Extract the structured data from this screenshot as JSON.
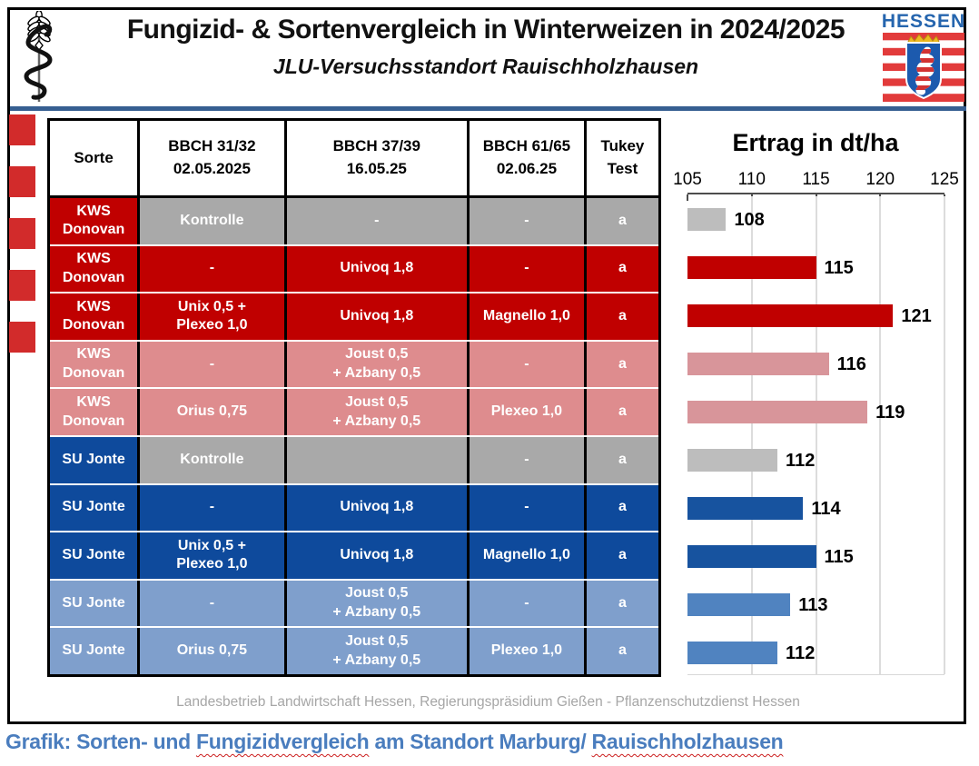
{
  "header": {
    "title": "Fungizid- & Sortenvergleich in Winterweizen in 2024/2025",
    "subtitle": "JLU-Versuchsstandort Rauischholzhausen",
    "hessen_label": "HESSEN"
  },
  "colors": {
    "darkred": "#C00000",
    "pink": "#DE8C8E",
    "gray": "#A9A9A9",
    "darkblue": "#0E4A9C",
    "lightblue": "#7F9FCC",
    "bar_gray": "#BDBDBD",
    "bar_darkred": "#C00000",
    "bar_pink": "#D8959A",
    "bar_darkblue": "#17539F",
    "bar_lightblue": "#5083C0",
    "divider_blue": "#365F91",
    "stripe_red": "#D22B2B",
    "caption_blue": "#4A7DBE"
  },
  "table": {
    "columns": [
      {
        "line1": "Sorte",
        "line2": ""
      },
      {
        "line1": "BBCH 31/32",
        "line2": "02.05.2025"
      },
      {
        "line1": "BBCH 37/39",
        "line2": "16.05.25"
      },
      {
        "line1": "BBCH 61/65",
        "line2": "02.06.25"
      },
      {
        "line1": "Tukey",
        "line2": "Test"
      }
    ],
    "rows": [
      {
        "sorte": "KWS Donovan",
        "bbch31": "Kontrolle",
        "bbch37": "-",
        "bbch61": "-",
        "tukey": "a",
        "sorte_bg": "darkred",
        "cells_bg": "gray"
      },
      {
        "sorte": "KWS Donovan",
        "bbch31": "-",
        "bbch37": "Univoq 1,8",
        "bbch61": "-",
        "tukey": "a",
        "sorte_bg": "darkred",
        "cells_bg": "darkred"
      },
      {
        "sorte": "KWS Donovan",
        "bbch31": "Unix 0,5 +\nPlexeo 1,0",
        "bbch37": "Univoq 1,8",
        "bbch61": "Magnello 1,0",
        "tukey": "a",
        "sorte_bg": "darkred",
        "cells_bg": "darkred"
      },
      {
        "sorte": "KWS Donovan",
        "bbch31": "-",
        "bbch37": "Joust 0,5\n+ Azbany 0,5",
        "bbch61": "-",
        "tukey": "a",
        "sorte_bg": "pink",
        "cells_bg": "pink"
      },
      {
        "sorte": "KWS Donovan",
        "bbch31": "Orius 0,75",
        "bbch37": "Joust 0,5\n+ Azbany 0,5",
        "bbch61": "Plexeo 1,0",
        "tukey": "a",
        "sorte_bg": "pink",
        "cells_bg": "pink"
      },
      {
        "sorte": "SU Jonte",
        "bbch31": "Kontrolle",
        "bbch37": "",
        "bbch61": "-",
        "tukey": "a",
        "sorte_bg": "darkblue",
        "cells_bg": "gray"
      },
      {
        "sorte": "SU Jonte",
        "bbch31": "-",
        "bbch37": "Univoq 1,8",
        "bbch61": "-",
        "tukey": "a",
        "sorte_bg": "darkblue",
        "cells_bg": "darkblue"
      },
      {
        "sorte": "SU Jonte",
        "bbch31": "Unix 0,5 +\nPlexeo 1,0",
        "bbch37": "Univoq 1,8",
        "bbch61": "Magnello 1,0",
        "tukey": "a",
        "sorte_bg": "darkblue",
        "cells_bg": "darkblue"
      },
      {
        "sorte": "SU Jonte",
        "bbch31": "-",
        "bbch37": "Joust 0,5\n+ Azbany 0,5",
        "bbch61": "-",
        "tukey": "a",
        "sorte_bg": "lightblue",
        "cells_bg": "lightblue"
      },
      {
        "sorte": "SU Jonte",
        "bbch31": "Orius 0,75",
        "bbch37": "Joust 0,5\n+ Azbany 0,5",
        "bbch61": "Plexeo 1,0",
        "tukey": "a",
        "sorte_bg": "lightblue",
        "cells_bg": "lightblue"
      }
    ]
  },
  "chart_data": {
    "type": "bar",
    "orientation": "horizontal",
    "title": "Ertrag in dt/ha",
    "xlabel": "",
    "ylabel": "",
    "xlim": [
      105,
      125
    ],
    "xticks": [
      105,
      110,
      115,
      120,
      125
    ],
    "grid": true,
    "legend": false,
    "categories": [
      "KWS Donovan - Kontrolle",
      "KWS Donovan - Univoq 1,8",
      "KWS Donovan - Unix 0,5 + Plexeo 1,0 / Univoq 1,8 / Magnello 1,0",
      "KWS Donovan - Joust 0,5 + Azbany 0,5",
      "KWS Donovan - Orius 0,75 / Joust 0,5 + Azbany 0,5 / Plexeo 1,0",
      "SU Jonte - Kontrolle",
      "SU Jonte - Univoq 1,8",
      "SU Jonte - Unix 0,5 + Plexeo 1,0 / Univoq 1,8 / Magnello 1,0",
      "SU Jonte - Joust 0,5 + Azbany 0,5",
      "SU Jonte - Orius 0,75 / Joust 0,5 + Azbany 0,5 / Plexeo 1,0"
    ],
    "values": [
      108,
      115,
      121,
      116,
      119,
      112,
      114,
      115,
      113,
      112
    ],
    "bar_colors": [
      "#BDBDBD",
      "#C00000",
      "#C00000",
      "#D8959A",
      "#D8959A",
      "#BDBDBD",
      "#17539F",
      "#17539F",
      "#5083C0",
      "#5083C0"
    ]
  },
  "footer": {
    "text": "Landesbetrieb Landwirtschaft Hessen, Regierungspräsidium Gießen - Pflanzenschutzdienst Hessen"
  },
  "caption": {
    "segments": [
      {
        "text": "Grafik: Sorten- und ",
        "underline": false
      },
      {
        "text": "Fungizidvergleich",
        "underline": true
      },
      {
        "text": " am Standort Marburg/ ",
        "underline": false
      },
      {
        "text": "Rauischholzhausen",
        "underline": true
      }
    ]
  }
}
